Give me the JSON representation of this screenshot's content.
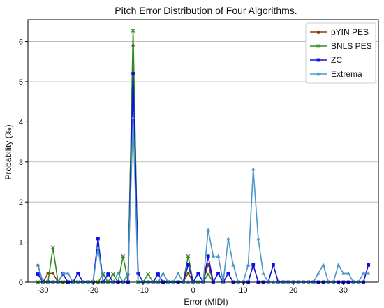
{
  "chart_data": {
    "type": "line",
    "title": "Pitch Error Distribution of Four Algorithms.",
    "xlabel": "Error (MIDI)",
    "ylabel": "Probability (‰)",
    "xlim": [
      -33,
      37
    ],
    "ylim": [
      0,
      6.55
    ],
    "xticks": [
      -30,
      -20,
      -10,
      0,
      10,
      20,
      30
    ],
    "yticks": [
      0,
      1,
      2,
      3,
      4,
      5,
      6
    ],
    "grid": "horizontal",
    "legend": "top-right",
    "series": [
      {
        "name": "pYIN PES",
        "color": "#8b3a0f",
        "marker": "circle",
        "x": [
          -31,
          -30,
          -29,
          -28,
          -27,
          -26,
          -25,
          -24,
          -23,
          -22,
          -21,
          -20,
          -19,
          -18,
          -17,
          -16,
          -15,
          -14,
          -13,
          -12,
          -11,
          -10,
          -9,
          -8,
          -7,
          -6,
          -5,
          -4,
          -3,
          -2,
          -1,
          0,
          1,
          2,
          3,
          4
        ],
        "y": [
          0.42,
          0.0,
          0.22,
          0.22,
          0.0,
          0.0,
          0.0,
          0.0,
          0.0,
          0.0,
          0.0,
          0.0,
          0.0,
          0.0,
          0.0,
          0.0,
          0.0,
          0.0,
          0.2,
          5.9,
          0.0,
          0.0,
          0.0,
          0.0,
          0.0,
          0.0,
          0.0,
          0.0,
          0.0,
          0.0,
          0.22,
          0.0,
          0.0,
          0.0,
          0.45,
          0.0
        ]
      },
      {
        "name": "BNLS PES",
        "color": "#2e8b22",
        "marker": "x",
        "x": [
          -31,
          -30,
          -29,
          -28,
          -27,
          -26,
          -25,
          -24,
          -23,
          -22,
          -21,
          -20,
          -19,
          -18,
          -17,
          -16,
          -15,
          -14,
          -13,
          -12,
          -11,
          -10,
          -9,
          -8,
          -7,
          -6,
          -5,
          -4,
          -3,
          -2,
          -1,
          0,
          1,
          2,
          3,
          4
        ],
        "y": [
          0.0,
          0.0,
          0.0,
          0.87,
          0.0,
          0.0,
          0.0,
          0.0,
          0.0,
          0.0,
          0.0,
          0.0,
          0.0,
          0.2,
          0.0,
          0.2,
          0.0,
          0.65,
          0.0,
          6.27,
          0.0,
          0.0,
          0.2,
          0.0,
          0.0,
          0.0,
          0.0,
          0.0,
          0.0,
          0.0,
          0.65,
          0.0,
          0.0,
          0.0,
          0.2,
          0.0
        ]
      },
      {
        "name": "ZC",
        "color": "#1010e0",
        "marker": "square",
        "x": [
          -31,
          -30,
          -29,
          -28,
          -27,
          -26,
          -25,
          -24,
          -23,
          -22,
          -21,
          -20,
          -19,
          -18,
          -17,
          -16,
          -15,
          -14,
          -13,
          -12,
          -11,
          -10,
          -9,
          -8,
          -7,
          -6,
          -5,
          -4,
          -3,
          -2,
          -1,
          0,
          1,
          2,
          3,
          4,
          5,
          6,
          7,
          8,
          9,
          10,
          11,
          12,
          13,
          14,
          15,
          16,
          17,
          18,
          19,
          20,
          21,
          22,
          23,
          24,
          25,
          26,
          27,
          28,
          29,
          30,
          31,
          32,
          33,
          34,
          35
        ],
        "y": [
          0.2,
          0.0,
          0.0,
          0.0,
          0.0,
          0.2,
          0.0,
          0.0,
          0.22,
          0.0,
          0.0,
          0.0,
          1.08,
          0.0,
          0.2,
          0.0,
          0.0,
          0.0,
          0.0,
          5.2,
          0.22,
          0.0,
          0.0,
          0.0,
          0.2,
          0.0,
          0.0,
          0.0,
          0.0,
          0.0,
          0.43,
          0.0,
          0.22,
          0.0,
          0.65,
          0.0,
          0.22,
          0.0,
          0.22,
          0.0,
          0.0,
          0.0,
          0.0,
          0.43,
          0.0,
          0.0,
          0.0,
          0.43,
          0.0,
          0.0,
          0.0,
          0.0,
          0.0,
          0.0,
          0.0,
          0.0,
          0.0,
          0.0,
          0.0,
          0.0,
          0.0,
          0.0,
          0.0,
          0.0,
          0.0,
          0.0,
          0.43
        ]
      },
      {
        "name": "Extrema",
        "color": "#4a97c8",
        "marker": "triangle",
        "x": [
          -31,
          -30,
          -29,
          -28,
          -27,
          -26,
          -25,
          -24,
          -23,
          -22,
          -21,
          -20,
          -19,
          -18,
          -17,
          -16,
          -15,
          -14,
          -13,
          -12,
          -11,
          -10,
          -9,
          -8,
          -7,
          -6,
          -5,
          -4,
          -3,
          -2,
          -1,
          0,
          1,
          2,
          3,
          4,
          5,
          6,
          7,
          8,
          9,
          10,
          11,
          12,
          13,
          14,
          15,
          16,
          17,
          18,
          19,
          20,
          21,
          22,
          23,
          24,
          25,
          26,
          27,
          28,
          29,
          30,
          31,
          32,
          33,
          34,
          35
        ],
        "y": [
          0.43,
          0.0,
          0.0,
          0.0,
          0.0,
          0.22,
          0.22,
          0.0,
          0.0,
          0.0,
          0.0,
          0.0,
          0.87,
          0.0,
          0.0,
          0.0,
          0.22,
          0.0,
          0.22,
          4.1,
          0.0,
          0.0,
          0.0,
          0.0,
          0.0,
          0.22,
          0.0,
          0.0,
          0.22,
          0.0,
          0.0,
          0.0,
          0.0,
          0.0,
          1.3,
          0.65,
          0.65,
          0.0,
          1.08,
          0.43,
          0.0,
          0.0,
          0.43,
          2.82,
          1.08,
          0.22,
          0.0,
          0.0,
          0.0,
          0.0,
          0.0,
          0.0,
          0.0,
          0.0,
          0.0,
          0.0,
          0.22,
          0.43,
          0.0,
          0.0,
          0.43,
          0.22,
          0.22,
          0.0,
          0.0,
          0.22,
          0.22
        ]
      }
    ]
  }
}
